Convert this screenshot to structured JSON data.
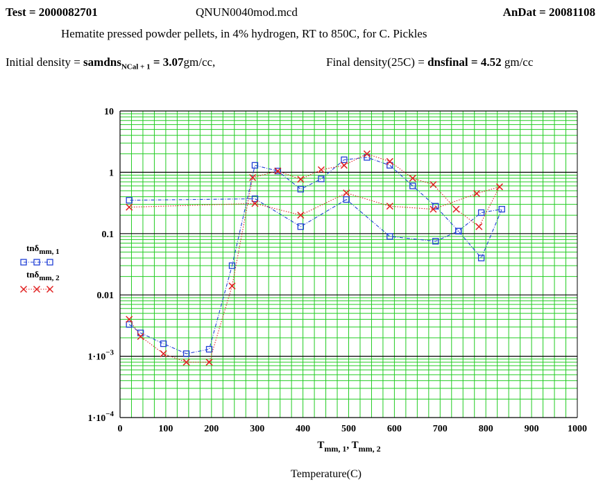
{
  "header": {
    "test_label": "Test = ",
    "test_value": "2000082701",
    "filename": "QNUN0040mod.mcd",
    "andat_label": "AnDat = ",
    "andat_value": "20081108",
    "description": "Hematite pressed powder pellets, in 4% hydrogen,  RT to 850C,  for C. Pickles"
  },
  "density": {
    "initial_label": "Initial density = ",
    "initial_var": "samdns",
    "initial_var_sub": "NCal + 1",
    "initial_eq": " = ",
    "initial_value": "3.07",
    "initial_unit": "gm/cc,",
    "final_label": "Final density(25C) = ",
    "final_var": "dnsfinal",
    "final_eq": " = ",
    "final_value": "4.52",
    "final_unit": " gm/cc"
  },
  "chart_data": {
    "type": "line",
    "title": "",
    "xlabel": "",
    "xlabel_var1": "T",
    "xlabel_sub1": "mm, 1",
    "xlabel_var2": "T",
    "xlabel_sub2": "mm, 2",
    "xlabel_caption": "Temperature(C)",
    "ylabel": "",
    "xlim": [
      0,
      1000
    ],
    "ylim": [
      0.0001,
      10
    ],
    "yscale": "log",
    "grid": true,
    "legend_position": "left",
    "x_ticks": [
      "0",
      "100",
      "200",
      "300",
      "400",
      "500",
      "600",
      "700",
      "800",
      "900",
      "1000"
    ],
    "y_ticks": [
      {
        "base": "1·10",
        "exp": "−4",
        "value": 0.0001
      },
      {
        "base": "1·10",
        "exp": "−3",
        "value": 0.001
      },
      {
        "base": "0.01",
        "exp": "",
        "value": 0.01
      },
      {
        "base": "0.1",
        "exp": "",
        "value": 0.1
      },
      {
        "base": "1",
        "exp": "",
        "value": 1
      },
      {
        "base": "10",
        "exp": "",
        "value": 10
      }
    ],
    "series": [
      {
        "name_var": "tnδ",
        "name_sub": "mm, 1",
        "color": "#1f3fd6",
        "marker": "square",
        "x": [
          20,
          45,
          95,
          145,
          195,
          245,
          295,
          345,
          395,
          440,
          490,
          540,
          590,
          640,
          690,
          740,
          790,
          835,
          790,
          740,
          690,
          590,
          495,
          395,
          295,
          20
        ],
        "y": [
          0.0033,
          0.0024,
          0.0016,
          0.0011,
          0.0013,
          0.03,
          1.3,
          1.05,
          0.53,
          0.78,
          1.6,
          1.75,
          1.3,
          0.6,
          0.28,
          0.11,
          0.22,
          0.25,
          0.04,
          0.11,
          0.075,
          0.09,
          0.36,
          0.13,
          0.37,
          0.35
        ]
      },
      {
        "name_var": "tnδ",
        "name_sub": "mm, 2",
        "color": "#e02020",
        "marker": "x",
        "x": [
          20,
          45,
          95,
          145,
          195,
          245,
          290,
          345,
          395,
          440,
          490,
          540,
          590,
          640,
          685,
          735,
          785,
          830,
          780,
          685,
          590,
          495,
          395,
          295,
          20
        ],
        "y": [
          0.004,
          0.0021,
          0.0011,
          0.0008,
          0.0008,
          0.014,
          0.82,
          1.05,
          0.77,
          1.1,
          1.3,
          2.0,
          1.5,
          0.8,
          0.63,
          0.25,
          0.13,
          0.58,
          0.45,
          0.25,
          0.28,
          0.46,
          0.2,
          0.31,
          0.27
        ]
      }
    ]
  }
}
